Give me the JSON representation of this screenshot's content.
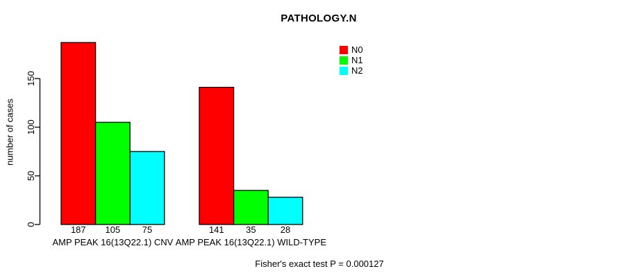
{
  "chart_data": {
    "type": "bar",
    "title": "PATHOLOGY.N",
    "ylabel": "number of cases",
    "xlabel": "",
    "ylim": [
      0,
      150
    ],
    "yticks": [
      0,
      50,
      100,
      150
    ],
    "grid": false,
    "legend_position": "top-right",
    "categories": [
      "AMP PEAK 16(13Q22.1) CNV",
      "AMP PEAK 16(13Q22.1) WILD-TYPE"
    ],
    "series": [
      {
        "name": "N0",
        "color": "#FF0000",
        "values": [
          187,
          141
        ]
      },
      {
        "name": "N1",
        "color": "#00FF00",
        "values": [
          105,
          35
        ]
      },
      {
        "name": "N2",
        "color": "#00FFFF",
        "values": [
          75,
          28
        ]
      }
    ],
    "bar_value_labels": [
      [
        187,
        105,
        75
      ],
      [
        141,
        35,
        28
      ]
    ],
    "annotation": "Fisher's exact test P = 0.000127",
    "axis_color": "#000000",
    "bar_border_color": "#000000"
  }
}
